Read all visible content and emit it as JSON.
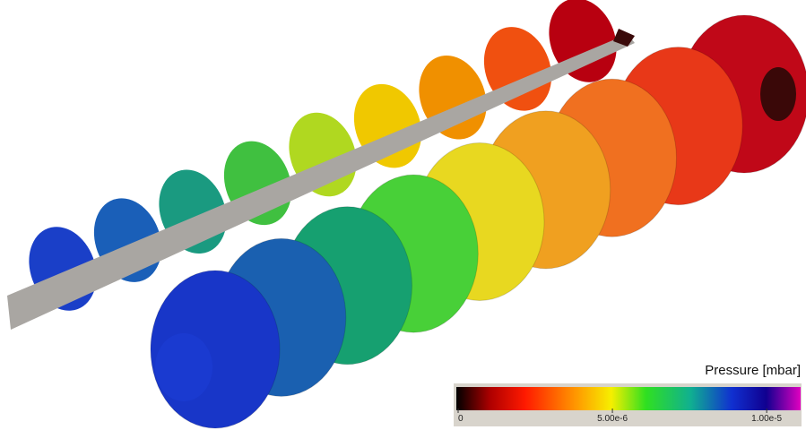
{
  "colorbar": {
    "title": "Pressure [mbar]",
    "lim": [
      0,
      1.11e-05
    ],
    "ticks": [
      0,
      {
        "value": 5e-06,
        "label": "5.00e-6"
      },
      {
        "value": 1e-05,
        "label": "1.00e-5"
      }
    ]
  }
}
